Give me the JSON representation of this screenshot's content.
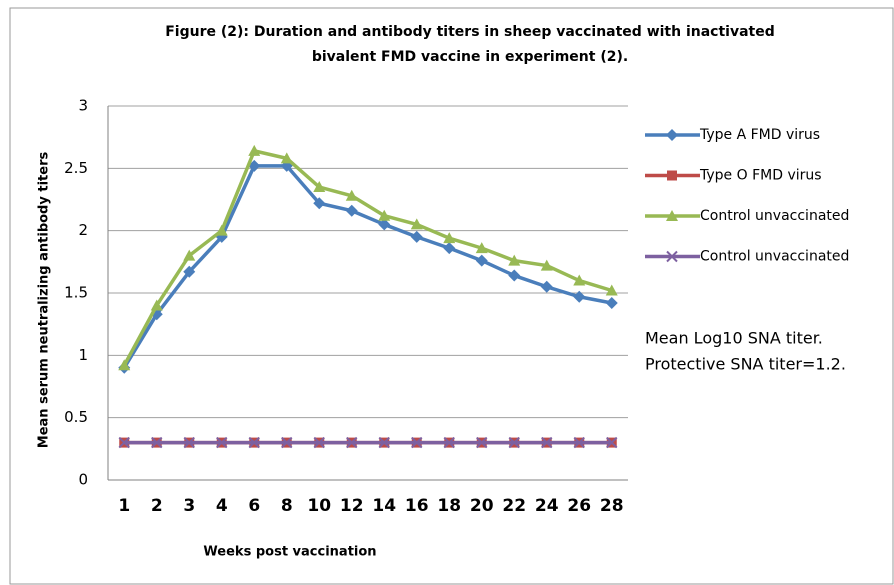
{
  "chart_data": {
    "type": "line",
    "title": [
      "Figure (2): Duration and antibody titers in sheep vaccinated  with inactivated",
      "bivalent FMD vaccine  in experiment (2)."
    ],
    "x_label": "Weeks post vaccination",
    "y_label": "Mean serum neutralizing antibody titers",
    "categories": [
      "1",
      "2",
      "3",
      "4",
      "6",
      "8",
      "10",
      "12",
      "14",
      "16",
      "18",
      "20",
      "22",
      "24",
      "26",
      "28"
    ],
    "series": [
      {
        "name": "Type A FMD virus",
        "color": "#4a7ebb",
        "marker": "diamond",
        "values": [
          0.9,
          1.33,
          1.67,
          1.95,
          2.52,
          2.52,
          2.22,
          2.16,
          2.05,
          1.95,
          1.86,
          1.76,
          1.64,
          1.55,
          1.47,
          1.42
        ]
      },
      {
        "name": "Type O FMD virus",
        "color": "#be4b48",
        "marker": "square",
        "values": [
          0.3,
          0.3,
          0.3,
          0.3,
          0.3,
          0.3,
          0.3,
          0.3,
          0.3,
          0.3,
          0.3,
          0.3,
          0.3,
          0.3,
          0.3,
          0.3
        ]
      },
      {
        "name": "Control unvaccinated",
        "color": "#98b954",
        "marker": "triangle",
        "values": [
          0.92,
          1.4,
          1.8,
          2.0,
          2.64,
          2.58,
          2.35,
          2.28,
          2.12,
          2.05,
          1.94,
          1.86,
          1.76,
          1.72,
          1.6,
          1.52
        ]
      },
      {
        "name": "Control unvaccinated",
        "color": "#7d60a0",
        "marker": "x",
        "values": [
          0.3,
          0.3,
          0.3,
          0.3,
          0.3,
          0.3,
          0.3,
          0.3,
          0.3,
          0.3,
          0.3,
          0.3,
          0.3,
          0.3,
          0.3,
          0.3
        ]
      }
    ],
    "annotations": [
      "Mean Log10 SNA titer.",
      "Protective SNA titer=1.2."
    ],
    "ylim": [
      0,
      3
    ],
    "yticks": [
      0,
      0.5,
      1,
      1.5,
      2,
      2.5,
      3
    ],
    "grid": true,
    "legend": "right"
  }
}
